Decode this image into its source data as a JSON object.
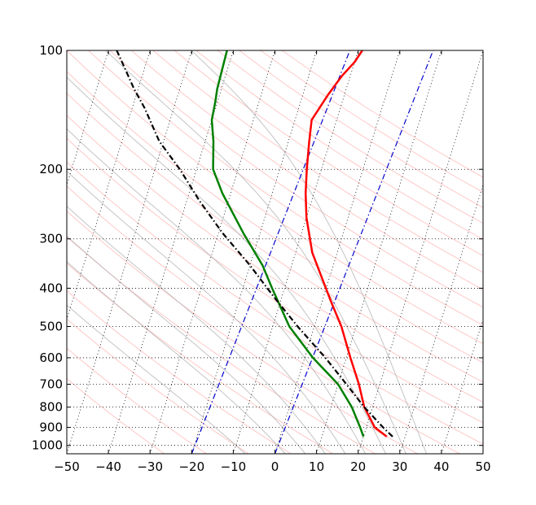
{
  "chart_data": {
    "type": "line",
    "title": "",
    "xlabel": "",
    "ylabel": "",
    "xlim": [
      -50,
      50
    ],
    "ylim": [
      1050,
      100
    ],
    "y_scale": "log",
    "grid": true,
    "x_ticks": [
      "−50",
      "−40",
      "−30",
      "−20",
      "−10",
      "0",
      "10",
      "20",
      "30",
      "40",
      "50"
    ],
    "x_tick_values": [
      -50,
      -40,
      -30,
      -20,
      -10,
      0,
      10,
      20,
      30,
      40,
      50
    ],
    "y_ticks": [
      "100",
      "200",
      "300",
      "400",
      "500",
      "600",
      "700",
      "800",
      "900",
      "1000"
    ],
    "y_tick_values": [
      100,
      200,
      300,
      400,
      500,
      600,
      700,
      800,
      900,
      1000
    ],
    "skew": 30,
    "series": [
      {
        "color": "#ff0000",
        "style": "solid",
        "points": [
          [
            25.6,
            950
          ],
          [
            22,
            900
          ],
          [
            18,
            800
          ],
          [
            15,
            700
          ],
          [
            11,
            600
          ],
          [
            6.5,
            500
          ],
          [
            2,
            430
          ],
          [
            -6,
            325
          ],
          [
            -10,
            265
          ],
          [
            -12,
            230
          ],
          [
            -13.5,
            200
          ],
          [
            -15,
            170
          ],
          [
            -16,
            150
          ],
          [
            -14,
            130
          ],
          [
            -12,
            116
          ],
          [
            -10,
            107
          ],
          [
            -9,
            100
          ]
        ]
      },
      {
        "color": "#008000",
        "style": "solid",
        "points": [
          [
            20,
            950
          ],
          [
            18.5,
            900
          ],
          [
            15,
            800
          ],
          [
            10,
            700
          ],
          [
            2,
            600
          ],
          [
            -6,
            500
          ],
          [
            -13,
            400
          ],
          [
            -17,
            350
          ],
          [
            -24,
            290
          ],
          [
            -32,
            230
          ],
          [
            -36,
            200
          ],
          [
            -38,
            170
          ],
          [
            -40,
            150
          ],
          [
            -40.5,
            135
          ],
          [
            -41,
            125
          ],
          [
            -41.5,
            100
          ]
        ]
      },
      {
        "color": "#000000",
        "style": "dashdot",
        "points": [
          [
            27,
            950
          ],
          [
            24,
            900
          ],
          [
            18,
            800
          ],
          [
            12,
            700
          ],
          [
            5,
            600
          ],
          [
            -4,
            500
          ],
          [
            -12,
            420
          ],
          [
            -20,
            350
          ],
          [
            -29,
            290
          ],
          [
            -37,
            240
          ],
          [
            -44,
            200
          ],
          [
            -51,
            170
          ],
          [
            -57,
            140
          ],
          [
            -61,
            125
          ],
          [
            -65,
            110
          ],
          [
            -68,
            100
          ]
        ]
      }
    ],
    "reference_lines": [
      {
        "color": "#0000cc",
        "style": "dashdot",
        "points": [
          [
            -20,
            1050
          ],
          [
            -12,
            100
          ]
        ]
      },
      {
        "color": "#0000cc",
        "style": "dashdot",
        "points": [
          [
            0,
            1050
          ],
          [
            8,
            100
          ]
        ]
      }
    ]
  }
}
